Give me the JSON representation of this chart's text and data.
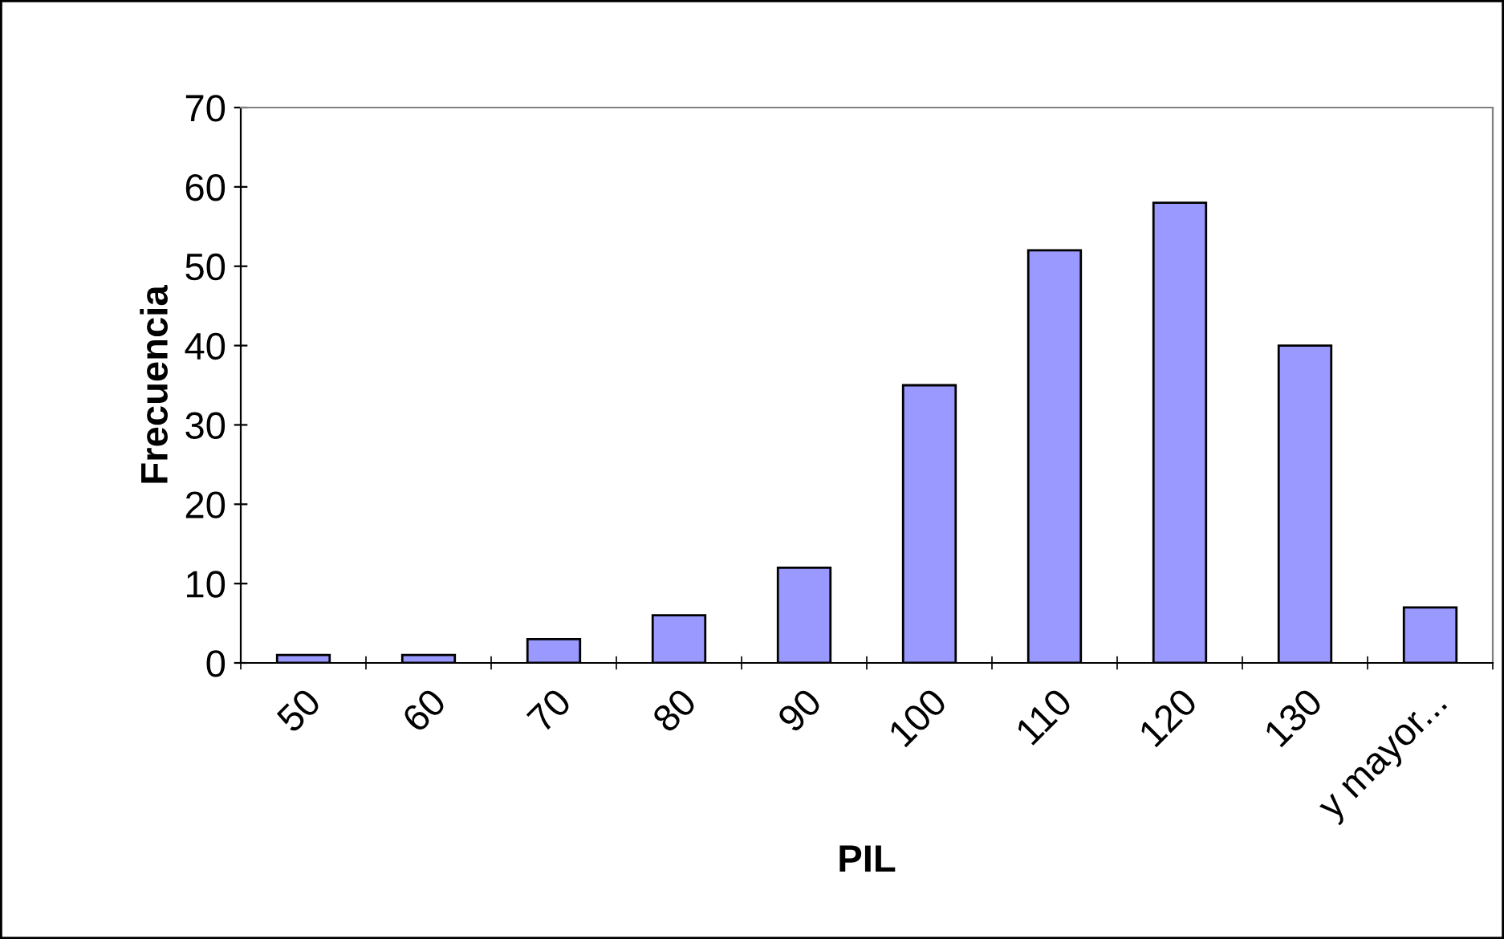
{
  "chart_data": {
    "type": "bar",
    "xlabel": "PIL",
    "ylabel": "Frecuencia",
    "categories": [
      "50",
      "60",
      "70",
      "80",
      "90",
      "100",
      "110",
      "120",
      "130",
      "y mayor..."
    ],
    "values": [
      1,
      1,
      3,
      6,
      12,
      35,
      52,
      58,
      40,
      7
    ],
    "color": "#9999ff",
    "ylim": [
      0,
      70
    ],
    "yticks": [
      0,
      10,
      20,
      30,
      40,
      50,
      60,
      70
    ],
    "grid": false,
    "legend": false
  }
}
